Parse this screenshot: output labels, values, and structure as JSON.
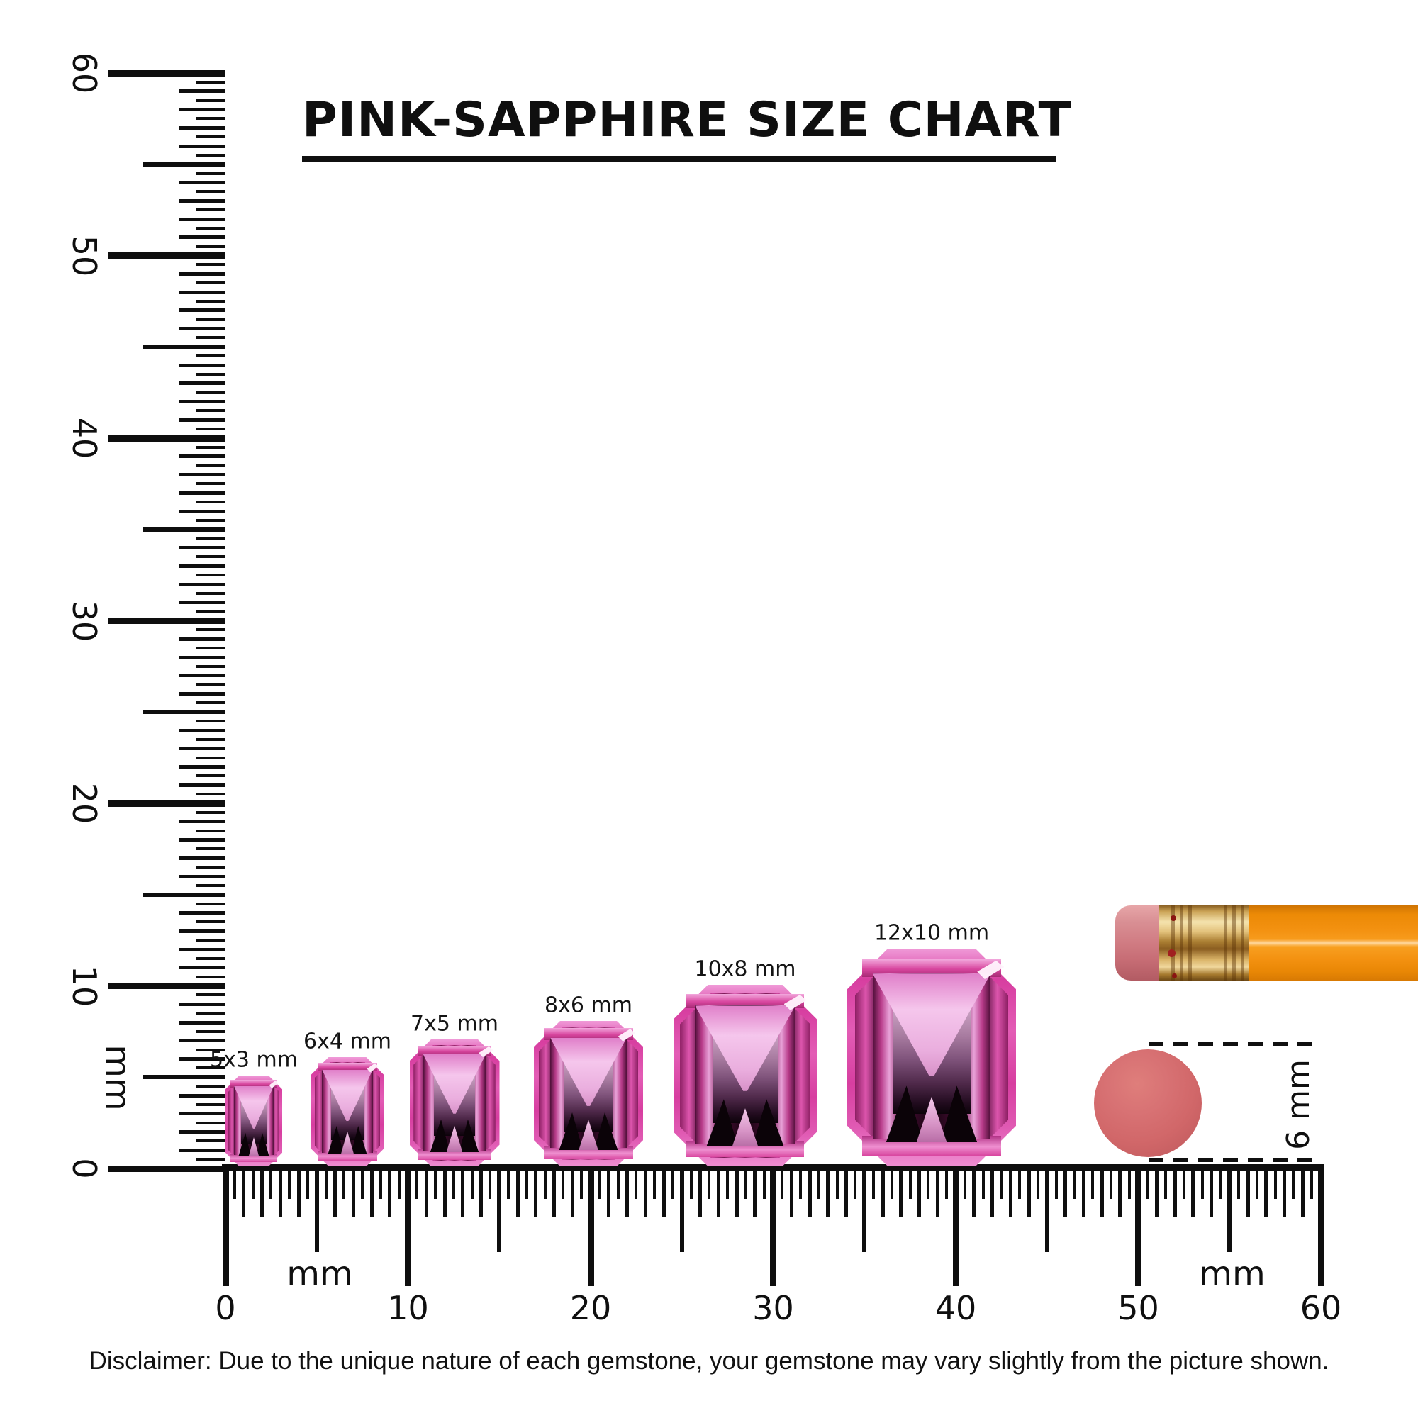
{
  "title": "PINK-SAPPHIRE SIZE CHART",
  "disclaimer": "Disclaimer: Due to the unique nature of each gemstone, your gemstone may vary slightly from the picture shown.",
  "rulers": {
    "unit": "mm",
    "horizontal": {
      "tick_numbers": [
        "0",
        "10",
        "20",
        "30",
        "40",
        "50",
        "60"
      ],
      "unit_label_left": "mm",
      "unit_label_right": "mm",
      "range_mm": [
        0,
        60
      ]
    },
    "vertical": {
      "tick_numbers": [
        "0",
        "10",
        "20",
        "30",
        "40",
        "50",
        "60"
      ],
      "unit_label": "mm",
      "range_mm": [
        0,
        60
      ]
    }
  },
  "gems": [
    {
      "label": "5x3 mm",
      "length_mm": 5,
      "width_mm": 3
    },
    {
      "label": "6x4 mm",
      "length_mm": 6,
      "width_mm": 4
    },
    {
      "label": "7x5 mm",
      "length_mm": 7,
      "width_mm": 5
    },
    {
      "label": "8x6 mm",
      "length_mm": 8,
      "width_mm": 6
    },
    {
      "label": "10x8 mm",
      "length_mm": 10,
      "width_mm": 8
    },
    {
      "label": "12x10 mm",
      "length_mm": 12,
      "width_mm": 10
    }
  ],
  "reference": {
    "eraser_diameter_label": "6 mm"
  },
  "colors": {
    "gem_pink": "#d8359e",
    "pencil_orange": "#f79b1c",
    "ferrule_gold": "#d9b367",
    "eraser_pink": "#d17d84",
    "eraser_circle_salmon": "#d16769",
    "ink_black": "#0e0e0e"
  },
  "chart_data": {
    "type": "table",
    "title": "PINK-SAPPHIRE SIZE CHART",
    "unit": "mm",
    "categories": [
      "5x3 mm",
      "6x4 mm",
      "7x5 mm",
      "8x6 mm",
      "10x8 mm",
      "12x10 mm"
    ],
    "series": [
      {
        "name": "length_mm",
        "values": [
          5,
          6,
          7,
          8,
          10,
          12
        ]
      },
      {
        "name": "width_mm",
        "values": [
          3,
          4,
          5,
          6,
          8,
          10
        ]
      }
    ],
    "ruler_axis_ticks_mm": [
      0,
      10,
      20,
      30,
      40,
      50,
      60
    ],
    "ruler_range_mm": [
      0,
      60
    ],
    "reference_object_size_label": "6 mm"
  }
}
